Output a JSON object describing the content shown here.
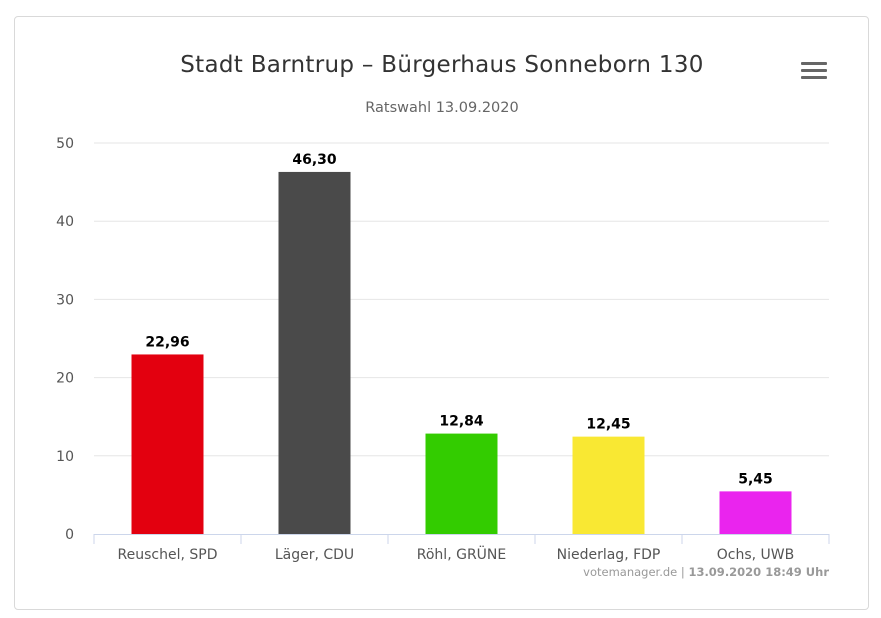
{
  "chart_data": {
    "type": "bar",
    "title": "Stadt Barntrup – Bürgerhaus Sonneborn 130",
    "subtitle": "Ratswahl 13.09.2020",
    "categories": [
      "Reuschel, SPD",
      "Läger, CDU",
      "Röhl, GRÜNE",
      "Niederlag, FDP",
      "Ochs, UWB"
    ],
    "values": [
      22.96,
      46.3,
      12.84,
      12.45,
      5.45
    ],
    "value_labels": [
      "22,96",
      "46,30",
      "12,84",
      "12,45",
      "5,45"
    ],
    "colors": [
      "#e3000f",
      "#4a4a4a",
      "#33cc00",
      "#f9e833",
      "#ea24ee"
    ],
    "ylim": [
      0,
      50
    ],
    "yticks": [
      0,
      10,
      20,
      30,
      40,
      50
    ],
    "grid": true,
    "legend": false
  },
  "credits": {
    "source": "votemanager.de",
    "separator": "|",
    "timestamp": "13.09.2020 18:49 Uhr"
  },
  "menu_icon": "hamburger-menu-icon"
}
